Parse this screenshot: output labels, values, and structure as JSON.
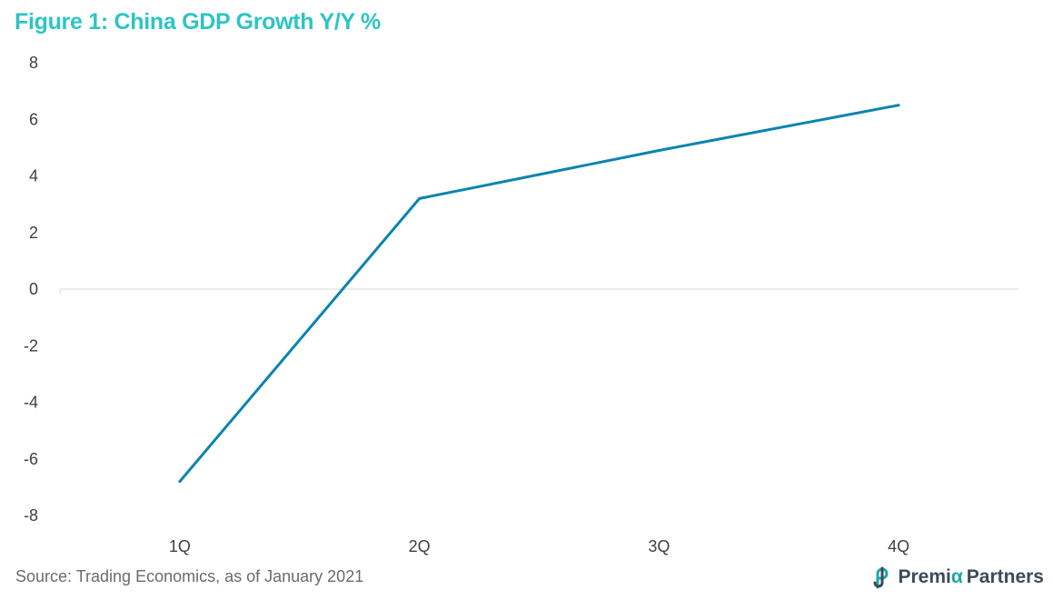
{
  "title": "Figure 1: China GDP Growth Y/Y %",
  "source": "Source: Trading Economics, as of January 2021",
  "brand": {
    "part1": "Premi",
    "part2": "α",
    "part3": "Partners",
    "icon": "premia-partners-logo-icon"
  },
  "colors": {
    "title": "#2ec4c4",
    "line": "#0a84b0",
    "axis": "#d9d9d9",
    "text": "#404040"
  },
  "chart_data": {
    "type": "line",
    "title": "Figure 1: China GDP Growth Y/Y %",
    "categories": [
      "1Q",
      "2Q",
      "3Q",
      "4Q"
    ],
    "series": [
      {
        "values": [
          -6.8,
          3.2,
          4.9,
          6.5
        ]
      }
    ],
    "yticks": [
      8,
      6,
      4,
      2,
      0,
      -2,
      -4,
      -6,
      -8
    ],
    "ylim": [
      -8,
      8
    ],
    "xlabel": "",
    "ylabel": "",
    "grid": false,
    "legend": "none"
  }
}
